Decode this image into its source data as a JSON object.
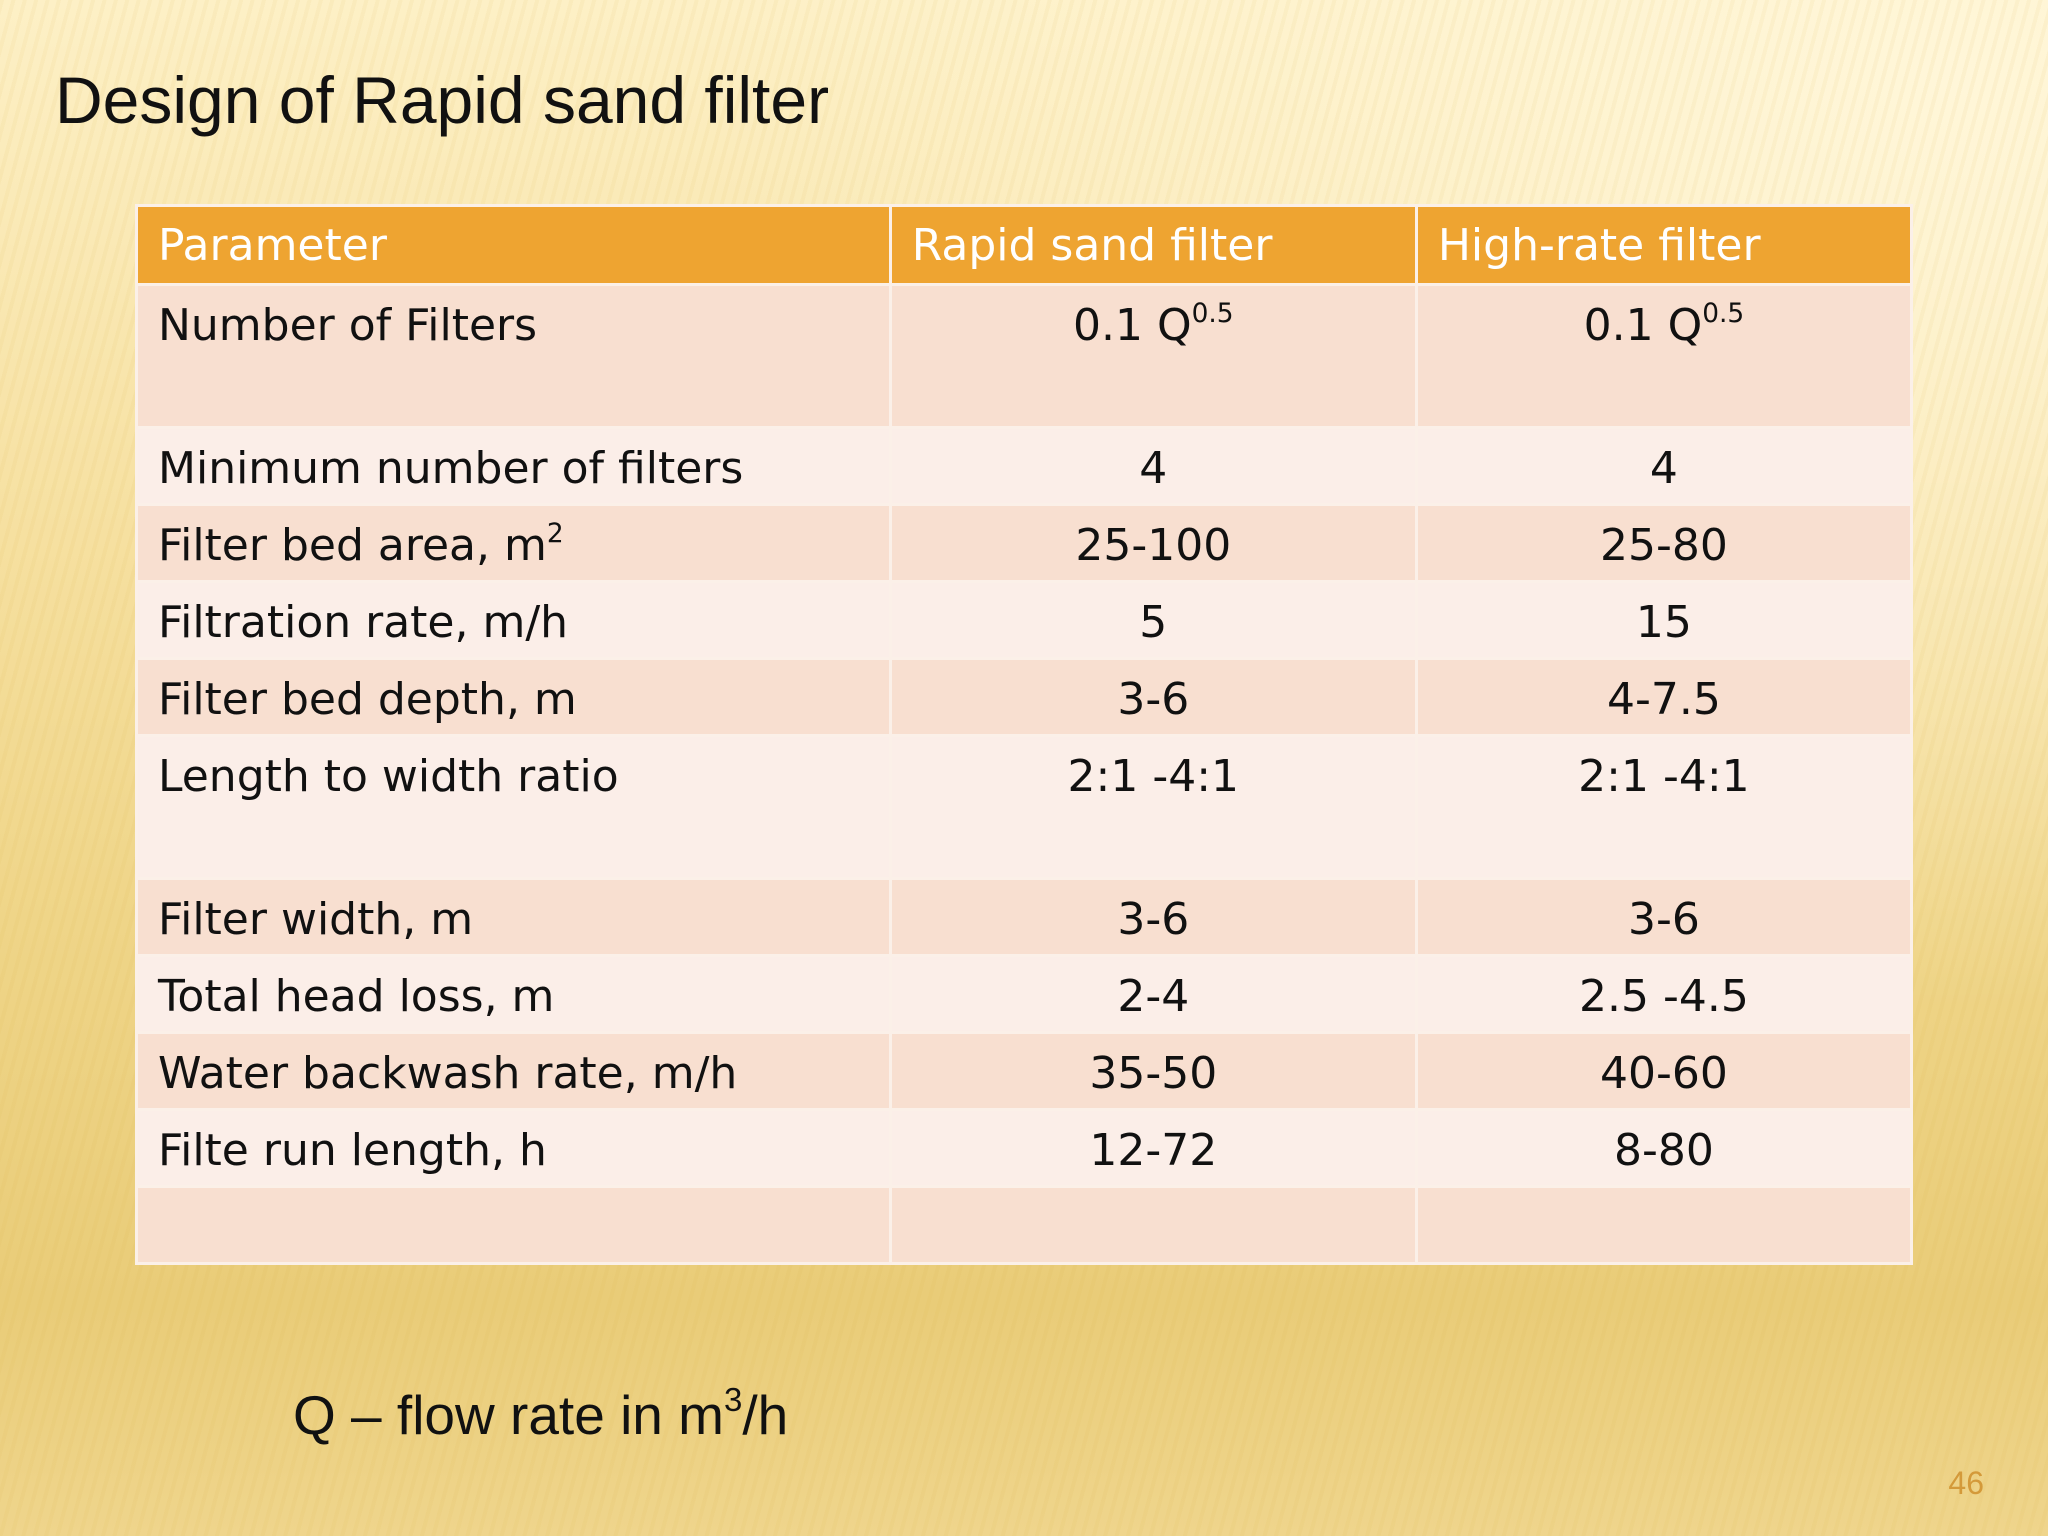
{
  "slide": {
    "title": "Design of Rapid sand filter",
    "page_number": "46"
  },
  "table": {
    "headers": [
      "Parameter",
      "Rapid sand  filter",
      "High-rate filter"
    ],
    "rows": [
      {
        "param": "Number of Filters",
        "rapid": "0.1 Q",
        "rapid_sup": "0.5",
        "high": "0.1 Q",
        "high_sup": "0.5"
      },
      {
        "param": "Minimum number of filters",
        "rapid": "4",
        "high": "4"
      },
      {
        "param": "Filter bed area, m",
        "param_sup": "2",
        "rapid": "25-100",
        "high": "25-80"
      },
      {
        "param": "Filtration rate, m/h",
        "rapid": "5",
        "high": "15"
      },
      {
        "param": "Filter bed depth, m",
        "rapid": "3-6",
        "high": "4-7.5"
      },
      {
        "param": "Length to width ratio",
        "rapid": "2:1 -4:1",
        "high": "2:1 -4:1"
      },
      {
        "param": "Filter width, m",
        "rapid": "3-6",
        "high": "3-6"
      },
      {
        "param": "Total head loss, m",
        "rapid": "2-4",
        "high": "2.5 -4.5"
      },
      {
        "param": "Water backwash rate, m/h",
        "rapid": "35-50",
        "high": "40-60"
      },
      {
        "param": "Filte run length, h",
        "rapid": "12-72",
        "high": "8-80"
      },
      {
        "param": "",
        "rapid": "",
        "high": ""
      }
    ]
  },
  "footnote": {
    "text": "Q – flow rate in m",
    "sup": "3",
    "suffix": "/h"
  }
}
